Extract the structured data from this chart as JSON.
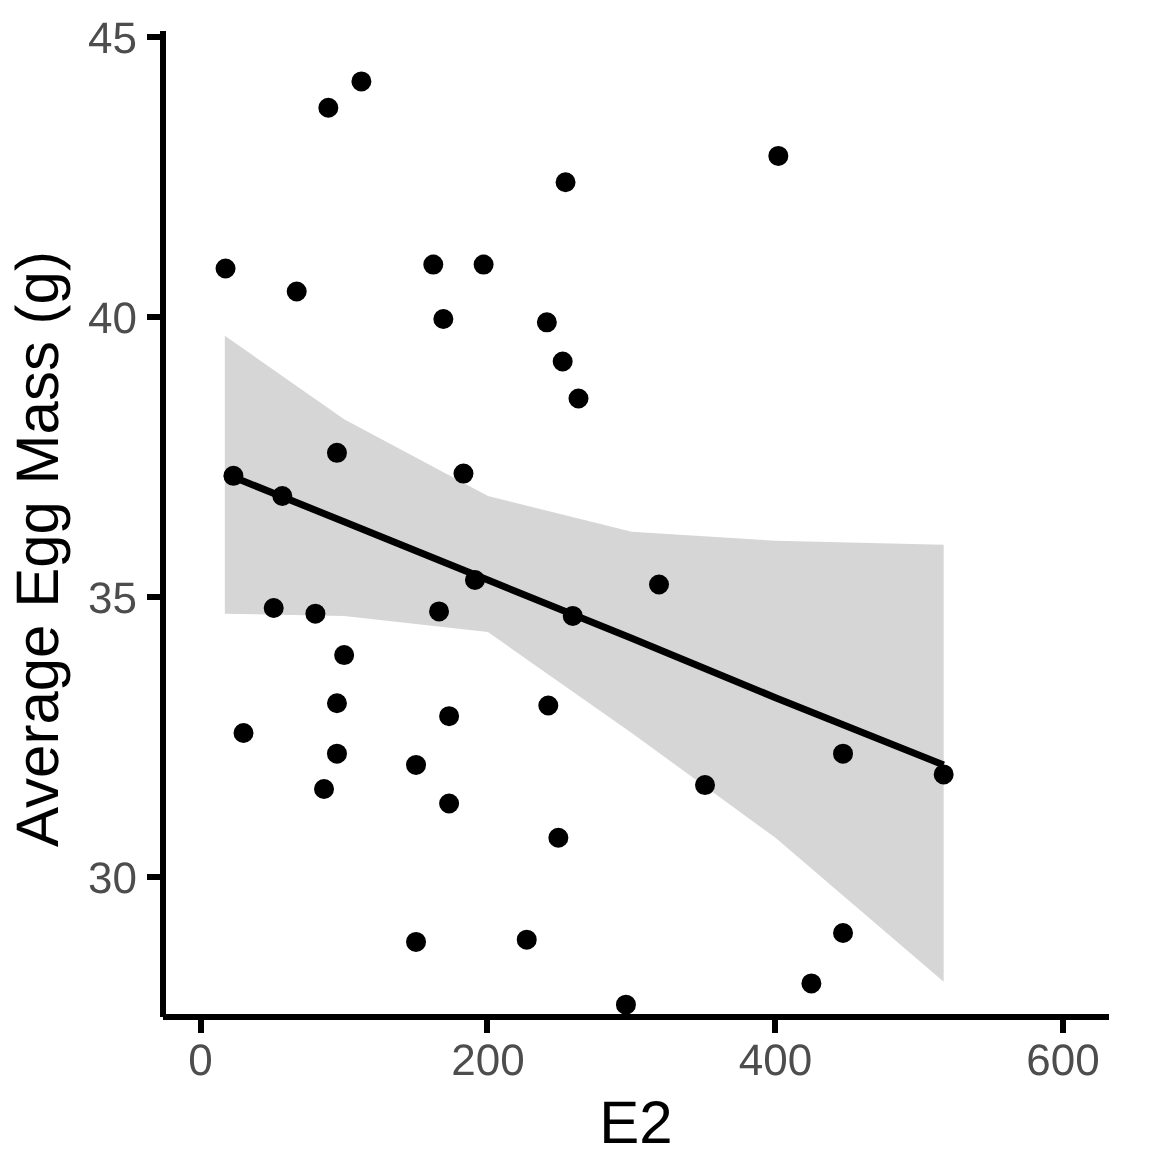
{
  "chart_data": {
    "type": "scatter",
    "xlabel": "E2",
    "ylabel": "Average Egg  Mass   (g)",
    "xlim": [
      -26,
      632
    ],
    "ylim": [
      27.5,
      45.1
    ],
    "xticks": [
      0,
      200,
      400,
      600
    ],
    "yticks": [
      30,
      35,
      40,
      45
    ],
    "grid": false,
    "marker": "circle",
    "series": [
      {
        "color": "#000000",
        "x": [
          17.5,
          23,
          30,
          51,
          57,
          67,
          80,
          86,
          89,
          95,
          95,
          95,
          100,
          112,
          150,
          150,
          162,
          166,
          169,
          173,
          173,
          183,
          191,
          197,
          227,
          241,
          242,
          249,
          252,
          254,
          259,
          263,
          296,
          319,
          351,
          402,
          425,
          447,
          447,
          517
        ],
        "values": [
          40.86,
          37.16,
          32.57,
          34.8,
          36.8,
          40.45,
          34.7,
          31.57,
          43.73,
          32.2,
          33.1,
          37.57,
          33.96,
          44.2,
          28.84,
          32.0,
          40.93,
          34.74,
          39.96,
          32.87,
          31.31,
          37.2,
          35.3,
          40.93,
          28.88,
          39.9,
          33.06,
          30.7,
          39.2,
          42.4,
          34.66,
          38.54,
          27.72,
          35.22,
          31.64,
          42.87,
          28.1,
          29.0,
          32.2,
          31.83
        ]
      },
      {
        "type": "line",
        "color": "#000000",
        "marker": "none",
        "x": [
          17,
          100,
          200,
          300,
          400,
          517
        ],
        "values": [
          37.2,
          36.34,
          35.3,
          34.26,
          33.2,
          32.0
        ],
        "lower": [
          34.7,
          34.66,
          34.37,
          32.57,
          30.7,
          28.13
        ],
        "upper": [
          39.66,
          38.17,
          36.8,
          36.16,
          36.0,
          35.93
        ]
      }
    ]
  }
}
